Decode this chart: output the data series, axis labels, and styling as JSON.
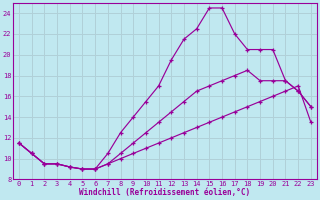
{
  "xlabel": "Windchill (Refroidissement éolien,°C)",
  "xlim": [
    -0.5,
    23.5
  ],
  "ylim": [
    8,
    25
  ],
  "xticks": [
    0,
    1,
    2,
    3,
    4,
    5,
    6,
    7,
    8,
    9,
    10,
    11,
    12,
    13,
    14,
    15,
    16,
    17,
    18,
    19,
    20,
    21,
    22,
    23
  ],
  "yticks": [
    8,
    10,
    12,
    14,
    16,
    18,
    20,
    22,
    24
  ],
  "bg_color": "#c0e8f0",
  "line_color": "#990099",
  "grid_color": "#b0d0d8",
  "line1_x": [
    0,
    1,
    2,
    3,
    4,
    5,
    6,
    7,
    8,
    9,
    10,
    11,
    12,
    13,
    14,
    15,
    16,
    17,
    18,
    19,
    20,
    21,
    22,
    23
  ],
  "line1_y": [
    11.5,
    10.5,
    9.5,
    9.5,
    9.2,
    9.0,
    9.0,
    10.5,
    12.5,
    14.0,
    15.5,
    17.0,
    19.5,
    21.5,
    22.5,
    24.5,
    24.5,
    22.0,
    20.5,
    20.5,
    20.5,
    17.5,
    16.5,
    15.0
  ],
  "line2_x": [
    0,
    1,
    2,
    3,
    4,
    5,
    6,
    7,
    8,
    9,
    10,
    11,
    12,
    13,
    14,
    15,
    16,
    17,
    18,
    19,
    20,
    21,
    22,
    23
  ],
  "line2_y": [
    11.5,
    10.5,
    9.5,
    9.5,
    9.2,
    9.0,
    9.0,
    9.5,
    10.5,
    11.5,
    12.5,
    13.5,
    14.5,
    15.5,
    16.5,
    17.0,
    17.5,
    18.0,
    18.5,
    17.5,
    17.5,
    17.5,
    16.5,
    15.0
  ],
  "line3_x": [
    0,
    1,
    2,
    3,
    4,
    5,
    6,
    7,
    8,
    9,
    10,
    11,
    12,
    13,
    14,
    15,
    16,
    17,
    18,
    19,
    20,
    21,
    22,
    23
  ],
  "line3_y": [
    11.5,
    10.5,
    9.5,
    9.5,
    9.2,
    9.0,
    9.0,
    9.5,
    10.0,
    10.5,
    11.0,
    11.5,
    12.0,
    12.5,
    13.0,
    13.5,
    14.0,
    14.5,
    15.0,
    15.5,
    16.0,
    16.5,
    17.0,
    13.5
  ]
}
